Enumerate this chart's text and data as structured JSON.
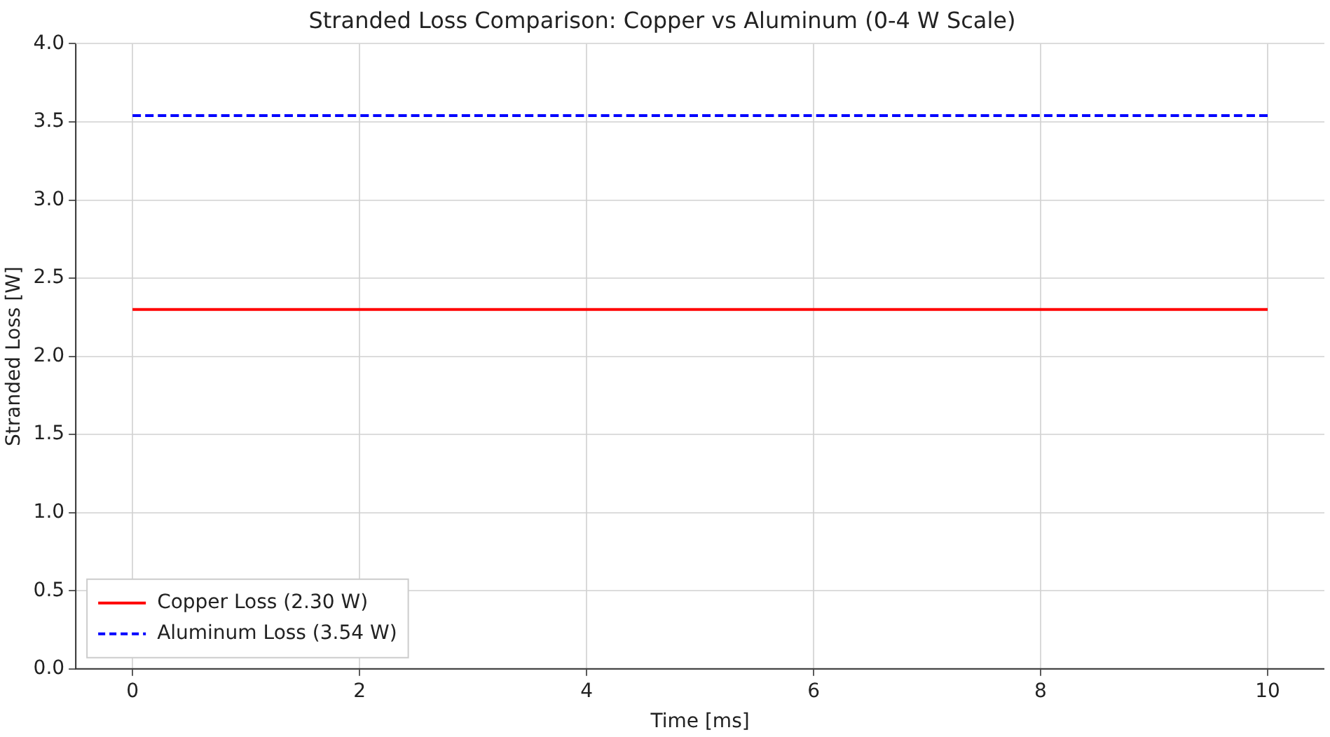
{
  "chart_data": {
    "type": "line",
    "title": "Stranded Loss Comparison: Copper vs Aluminum (0-4 W Scale)",
    "xlabel": "Time [ms]",
    "ylabel": "Stranded Loss [W]",
    "x": [
      0,
      10
    ],
    "series": [
      {
        "name": "Copper Loss (2.30 W)",
        "color": "#ff0000",
        "values": [
          2.3,
          2.3
        ],
        "line_style": "solid"
      },
      {
        "name": "Aluminum Loss (3.54 W)",
        "color": "#0000ff",
        "values": [
          3.54,
          3.54
        ],
        "line_style": "dashed"
      }
    ],
    "xlim": [
      -0.5,
      10.5
    ],
    "xticks": [
      0,
      2,
      4,
      6,
      8,
      10
    ],
    "ylim": [
      0,
      4
    ],
    "yticks": [
      {
        "value": 0,
        "label": "0.0"
      },
      0.5,
      {
        "value": 1,
        "label": "1.0"
      },
      1.5,
      {
        "value": 2,
        "label": "2.0"
      },
      2.5,
      {
        "value": 3,
        "label": "3.0"
      },
      3.5,
      {
        "value": 4,
        "label": "4.0"
      }
    ],
    "grid": true,
    "legend": "bottom left",
    "marker": "none"
  }
}
